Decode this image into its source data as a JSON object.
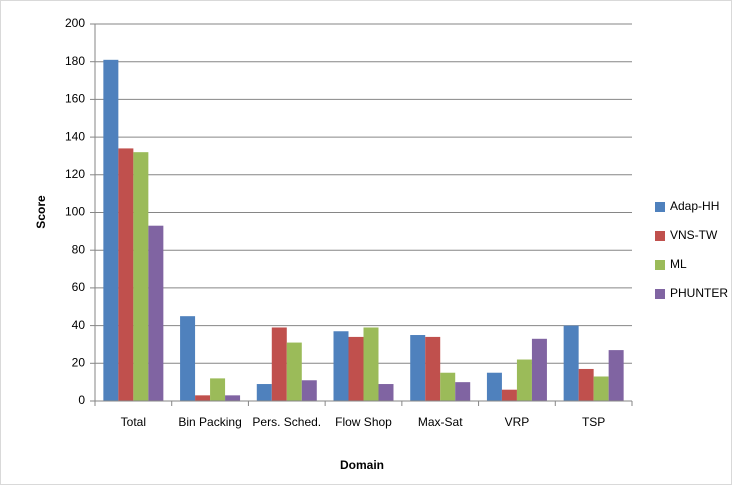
{
  "chart_data": {
    "type": "bar",
    "x_label": "Domain",
    "y_label": "Score",
    "categories": [
      "Total",
      "Bin Packing",
      "Pers. Sched.",
      "Flow Shop",
      "Max-Sat",
      "VRP",
      "TSP"
    ],
    "series": [
      {
        "name": "Adap-HH",
        "color": "#4f81bd",
        "values": [
          181,
          45,
          9,
          37,
          35,
          15,
          40
        ]
      },
      {
        "name": "VNS-TW",
        "color": "#c0504d",
        "values": [
          134,
          3,
          39,
          34,
          34,
          6,
          17
        ]
      },
      {
        "name": "ML",
        "color": "#9bbb59",
        "values": [
          132,
          12,
          31,
          39,
          15,
          22,
          13
        ]
      },
      {
        "name": "PHUNTER",
        "color": "#8064a2",
        "values": [
          93,
          3,
          11,
          9,
          10,
          33,
          27
        ]
      }
    ],
    "ylim": [
      0,
      200
    ],
    "yticks": [
      0,
      20,
      40,
      60,
      80,
      100,
      120,
      140,
      160,
      180,
      200
    ],
    "grid": true,
    "legend": "right"
  }
}
